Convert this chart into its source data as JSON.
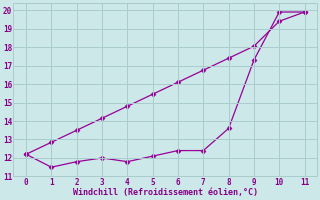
{
  "line1_x": [
    0,
    1,
    2,
    3,
    4,
    5,
    6,
    7,
    8,
    9,
    10,
    11
  ],
  "line1_y": [
    12.2,
    11.5,
    11.8,
    12.0,
    11.8,
    12.1,
    12.4,
    12.4,
    13.6,
    17.3,
    19.9,
    19.9
  ],
  "line2_x": [
    0,
    1,
    2,
    3,
    4,
    5,
    6,
    7,
    8,
    9,
    10,
    11
  ],
  "line2_y": [
    12.2,
    12.85,
    13.5,
    14.15,
    14.8,
    15.45,
    16.1,
    16.75,
    17.4,
    18.05,
    19.4,
    19.9
  ],
  "line_color": "#990099",
  "bg_color": "#cce8e8",
  "grid_color": "#aacccc",
  "xlabel": "Windchill (Refroidissement éolien,°C)",
  "xlim": [
    -0.5,
    11.5
  ],
  "ylim": [
    11,
    20.4
  ],
  "xticks": [
    0,
    1,
    2,
    3,
    4,
    5,
    6,
    7,
    8,
    9,
    10,
    11
  ],
  "yticks": [
    11,
    12,
    13,
    14,
    15,
    16,
    17,
    18,
    19,
    20
  ],
  "label_color": "#880088",
  "marker": "D",
  "marker_size": 2.5,
  "line_width": 0.9,
  "font_size": 5.5,
  "xlabel_size": 6.0
}
